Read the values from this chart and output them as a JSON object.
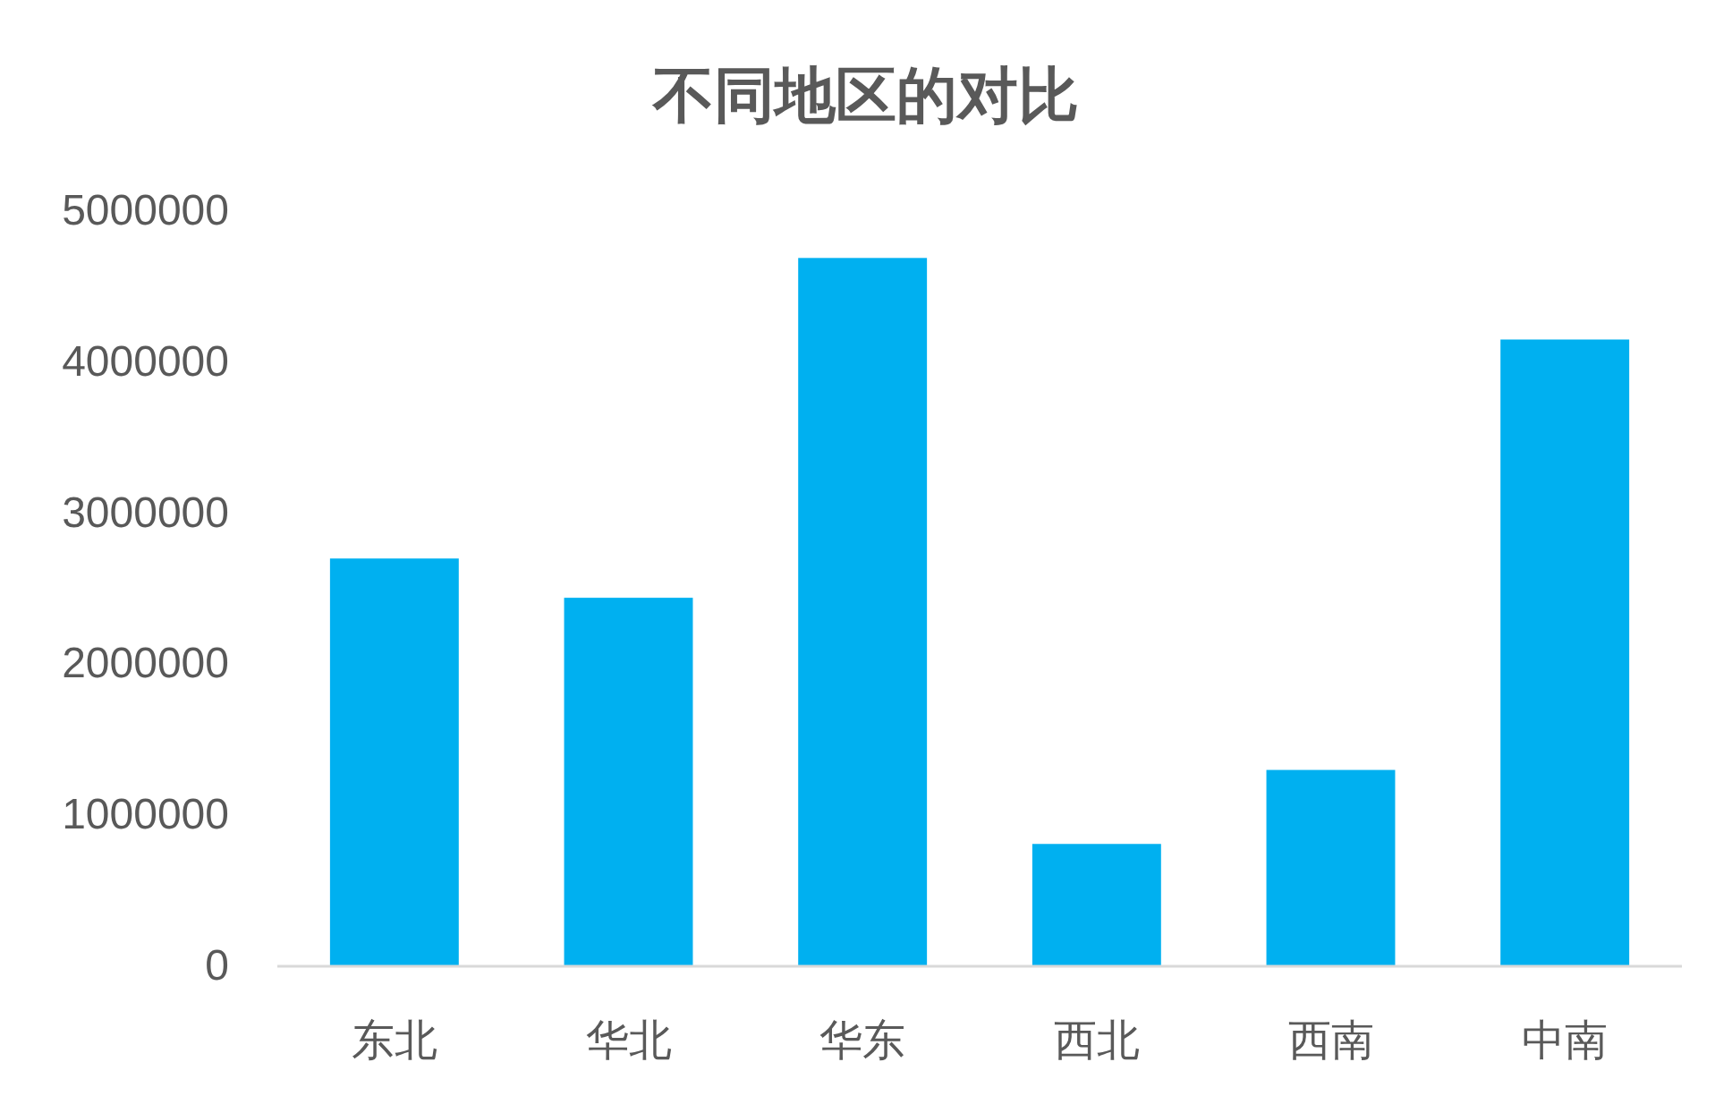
{
  "chart_data": {
    "type": "bar",
    "title": "不同地区的对比",
    "categories": [
      "东北",
      "华北",
      "华东",
      "西北",
      "西南",
      "中南"
    ],
    "values": [
      2700000,
      2440000,
      4690000,
      810000,
      1300000,
      4150000
    ],
    "color": "#00b0f0",
    "ylim": [
      0,
      5000000
    ],
    "yticks": [
      0,
      1000000,
      2000000,
      3000000,
      4000000,
      5000000
    ]
  }
}
